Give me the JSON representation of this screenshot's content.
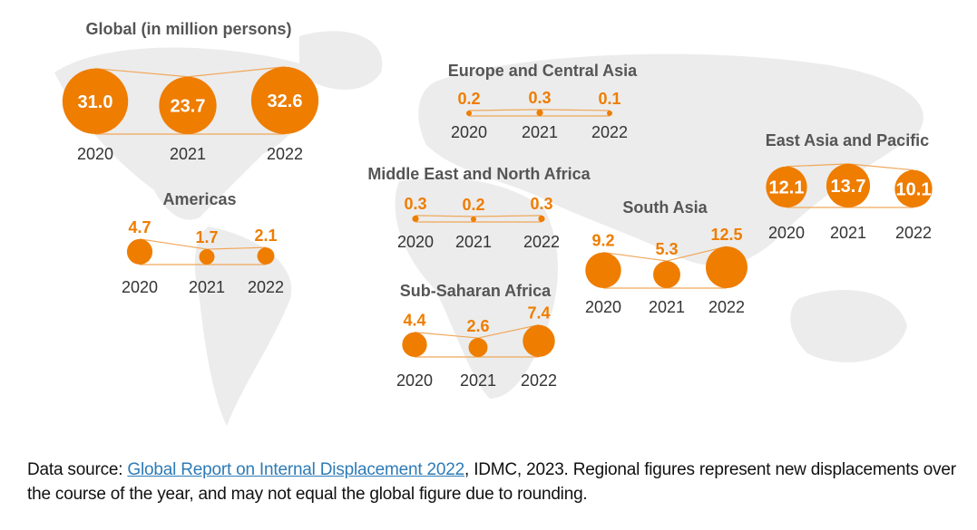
{
  "chart_data": {
    "type": "bubble-map",
    "unit_note": "in million persons",
    "colors": {
      "bubble": "#ee7d00",
      "line": "#f0a75a",
      "label": "#ee7d00",
      "title": "#555555",
      "year": "#333333",
      "map": "#ececec"
    },
    "years": [
      "2020",
      "2021",
      "2022"
    ],
    "groups": [
      {
        "title": "Global (in million persons)",
        "values": [
          31.0,
          23.7,
          32.6
        ],
        "labels": [
          "31.0",
          "23.7",
          "32.6"
        ]
      },
      {
        "title": "Europe and Central Asia",
        "values": [
          0.2,
          0.3,
          0.1
        ],
        "labels": [
          "0.2",
          "0.3",
          "0.1"
        ]
      },
      {
        "title": "Middle East and North Africa",
        "values": [
          0.3,
          0.2,
          0.3
        ],
        "labels": [
          "0.3",
          "0.2",
          "0.3"
        ]
      },
      {
        "title": "Americas",
        "values": [
          4.7,
          1.7,
          2.1
        ],
        "labels": [
          "4.7",
          "1.7",
          "2.1"
        ]
      },
      {
        "title": "South Asia",
        "values": [
          9.2,
          5.3,
          12.5
        ],
        "labels": [
          "9.2",
          "5.3",
          "12.5"
        ]
      },
      {
        "title": "Sub-Saharan Africa",
        "values": [
          4.4,
          2.6,
          7.4
        ],
        "labels": [
          "4.4",
          "2.6",
          "7.4"
        ]
      },
      {
        "title": "East Asia and Pacific",
        "values": [
          12.1,
          13.7,
          10.1
        ],
        "labels": [
          "12.1",
          "13.7",
          "10.1"
        ]
      }
    ]
  },
  "note": {
    "prefix": "Data source: ",
    "link": "Global Report on Internal Displacement 2022",
    "suffix": ", IDMC, 2023. Regional figures represent new displacements over the course of the year, and may not equal the global figure due to rounding."
  }
}
